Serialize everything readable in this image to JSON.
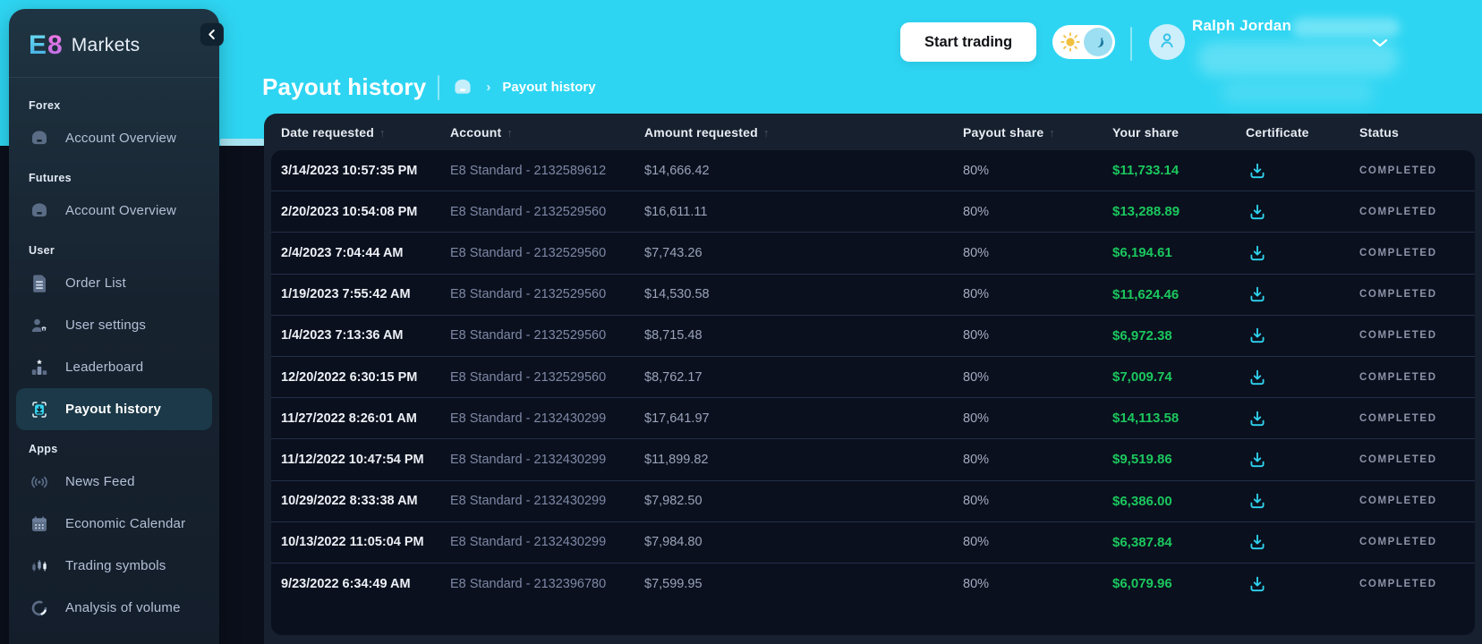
{
  "brand": {
    "logo_e": "E",
    "logo_8": "8",
    "name": "Markets"
  },
  "colors": {
    "accent_cyan": "#2ed5f2",
    "green_positive": "#1bc75e",
    "panel_dark": "#16202e",
    "rows_dark": "#0a101d",
    "sidebar_active_bg": "#1b3948",
    "brand_pink": "#f678e0"
  },
  "sidebar": {
    "collapse_icon": "chevron-left-icon",
    "sections": [
      {
        "label": "Forex",
        "items": [
          {
            "label": "Account Overview",
            "icon": "vault-icon",
            "active": false
          }
        ]
      },
      {
        "label": "Futures",
        "items": [
          {
            "label": "Account Overview",
            "icon": "vault-icon",
            "active": false
          }
        ]
      },
      {
        "label": "User",
        "items": [
          {
            "label": "Order List",
            "icon": "order-list-icon",
            "active": false
          },
          {
            "label": "User settings",
            "icon": "user-settings-icon",
            "active": false
          },
          {
            "label": "Leaderboard",
            "icon": "leaderboard-icon",
            "active": false
          },
          {
            "label": "Payout history",
            "icon": "payout-icon",
            "active": true
          }
        ]
      },
      {
        "label": "Apps",
        "items": [
          {
            "label": "News Feed",
            "icon": "news-feed-icon",
            "active": false
          },
          {
            "label": "Economic Calendar",
            "icon": "calendar-icon",
            "active": false
          },
          {
            "label": "Trading symbols",
            "icon": "candles-icon",
            "active": false
          },
          {
            "label": "Analysis of volume",
            "icon": "volume-icon",
            "active": false
          }
        ]
      }
    ]
  },
  "header": {
    "start_trading_label": "Start trading",
    "theme_toggle": {
      "left_icon": "sun-icon",
      "right_icon": "moon-icon"
    },
    "user_name": "Ralph Jordan",
    "caret_icon": "chevron-down-icon"
  },
  "page": {
    "title": "Payout history",
    "breadcrumb": {
      "home_icon": "home-icon",
      "separator": "›",
      "current": "Payout history"
    }
  },
  "table": {
    "columns": [
      {
        "label": "Date requested",
        "sortable": true
      },
      {
        "label": "Account",
        "sortable": true
      },
      {
        "label": "Amount requested",
        "sortable": true
      },
      {
        "label": "Payout share",
        "sortable": true
      },
      {
        "label": "Your share",
        "sortable": false
      },
      {
        "label": "Certificate",
        "sortable": false
      },
      {
        "label": "Status",
        "sortable": false
      }
    ],
    "certificate_icon": "download-icon",
    "rows": [
      {
        "date": "3/14/2023 10:57:35 PM",
        "account": "E8 Standard - 2132589612",
        "amount": "$14,666.42",
        "payout_share": "80%",
        "your_share": "$11,733.14",
        "status": "COMPLETED"
      },
      {
        "date": "2/20/2023 10:54:08 PM",
        "account": "E8 Standard - 2132529560",
        "amount": "$16,611.11",
        "payout_share": "80%",
        "your_share": "$13,288.89",
        "status": "COMPLETED"
      },
      {
        "date": "2/4/2023 7:04:44 AM",
        "account": "E8 Standard - 2132529560",
        "amount": "$7,743.26",
        "payout_share": "80%",
        "your_share": "$6,194.61",
        "status": "COMPLETED"
      },
      {
        "date": "1/19/2023 7:55:42 AM",
        "account": "E8 Standard - 2132529560",
        "amount": "$14,530.58",
        "payout_share": "80%",
        "your_share": "$11,624.46",
        "status": "COMPLETED"
      },
      {
        "date": "1/4/2023 7:13:36 AM",
        "account": "E8 Standard - 2132529560",
        "amount": "$8,715.48",
        "payout_share": "80%",
        "your_share": "$6,972.38",
        "status": "COMPLETED"
      },
      {
        "date": "12/20/2022 6:30:15 PM",
        "account": "E8 Standard - 2132529560",
        "amount": "$8,762.17",
        "payout_share": "80%",
        "your_share": "$7,009.74",
        "status": "COMPLETED"
      },
      {
        "date": "11/27/2022 8:26:01 AM",
        "account": "E8 Standard - 2132430299",
        "amount": "$17,641.97",
        "payout_share": "80%",
        "your_share": "$14,113.58",
        "status": "COMPLETED"
      },
      {
        "date": "11/12/2022 10:47:54 PM",
        "account": "E8 Standard - 2132430299",
        "amount": "$11,899.82",
        "payout_share": "80%",
        "your_share": "$9,519.86",
        "status": "COMPLETED"
      },
      {
        "date": "10/29/2022 8:33:38 AM",
        "account": "E8 Standard - 2132430299",
        "amount": "$7,982.50",
        "payout_share": "80%",
        "your_share": "$6,386.00",
        "status": "COMPLETED"
      },
      {
        "date": "10/13/2022 11:05:04 PM",
        "account": "E8 Standard - 2132430299",
        "amount": "$7,984.80",
        "payout_share": "80%",
        "your_share": "$6,387.84",
        "status": "COMPLETED"
      },
      {
        "date": "9/23/2022 6:34:49 AM",
        "account": "E8 Standard - 2132396780",
        "amount": "$7,599.95",
        "payout_share": "80%",
        "your_share": "$6,079.96",
        "status": "COMPLETED"
      }
    ]
  }
}
